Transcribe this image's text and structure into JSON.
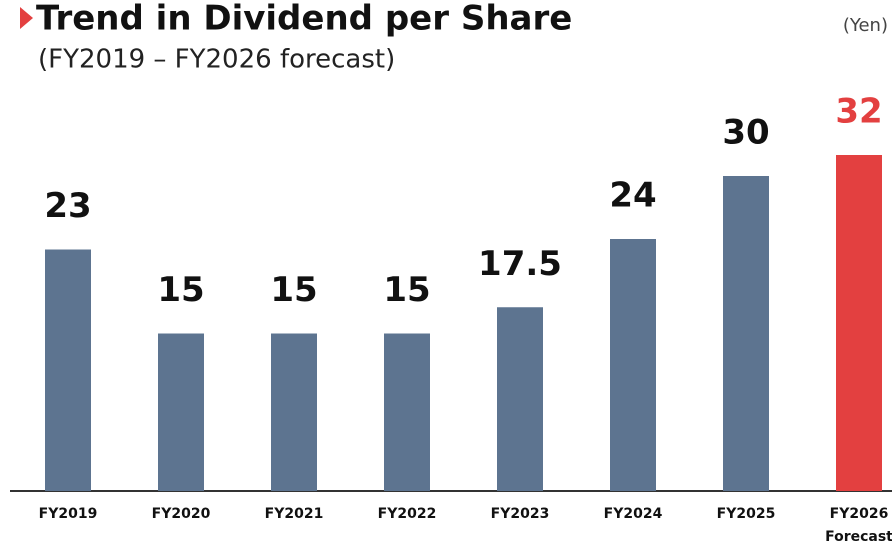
{
  "chart_data": {
    "type": "bar",
    "title": "Trend in Dividend per Share",
    "subtitle": "(FY2019 – FY2026 forecast)",
    "unit": "(Yen)",
    "categories": [
      "FY2019",
      "FY2020",
      "FY2021",
      "FY2022",
      "FY2023",
      "FY2024",
      "FY2025",
      "FY2026"
    ],
    "category_note": "Forecast",
    "values": [
      23,
      15,
      15,
      15,
      17.5,
      24,
      30,
      32
    ],
    "colors": [
      "#5d7490",
      "#5d7490",
      "#5d7490",
      "#5d7490",
      "#5d7490",
      "#5d7490",
      "#5d7490",
      "#e34040"
    ],
    "ylim": [
      0,
      32
    ]
  }
}
